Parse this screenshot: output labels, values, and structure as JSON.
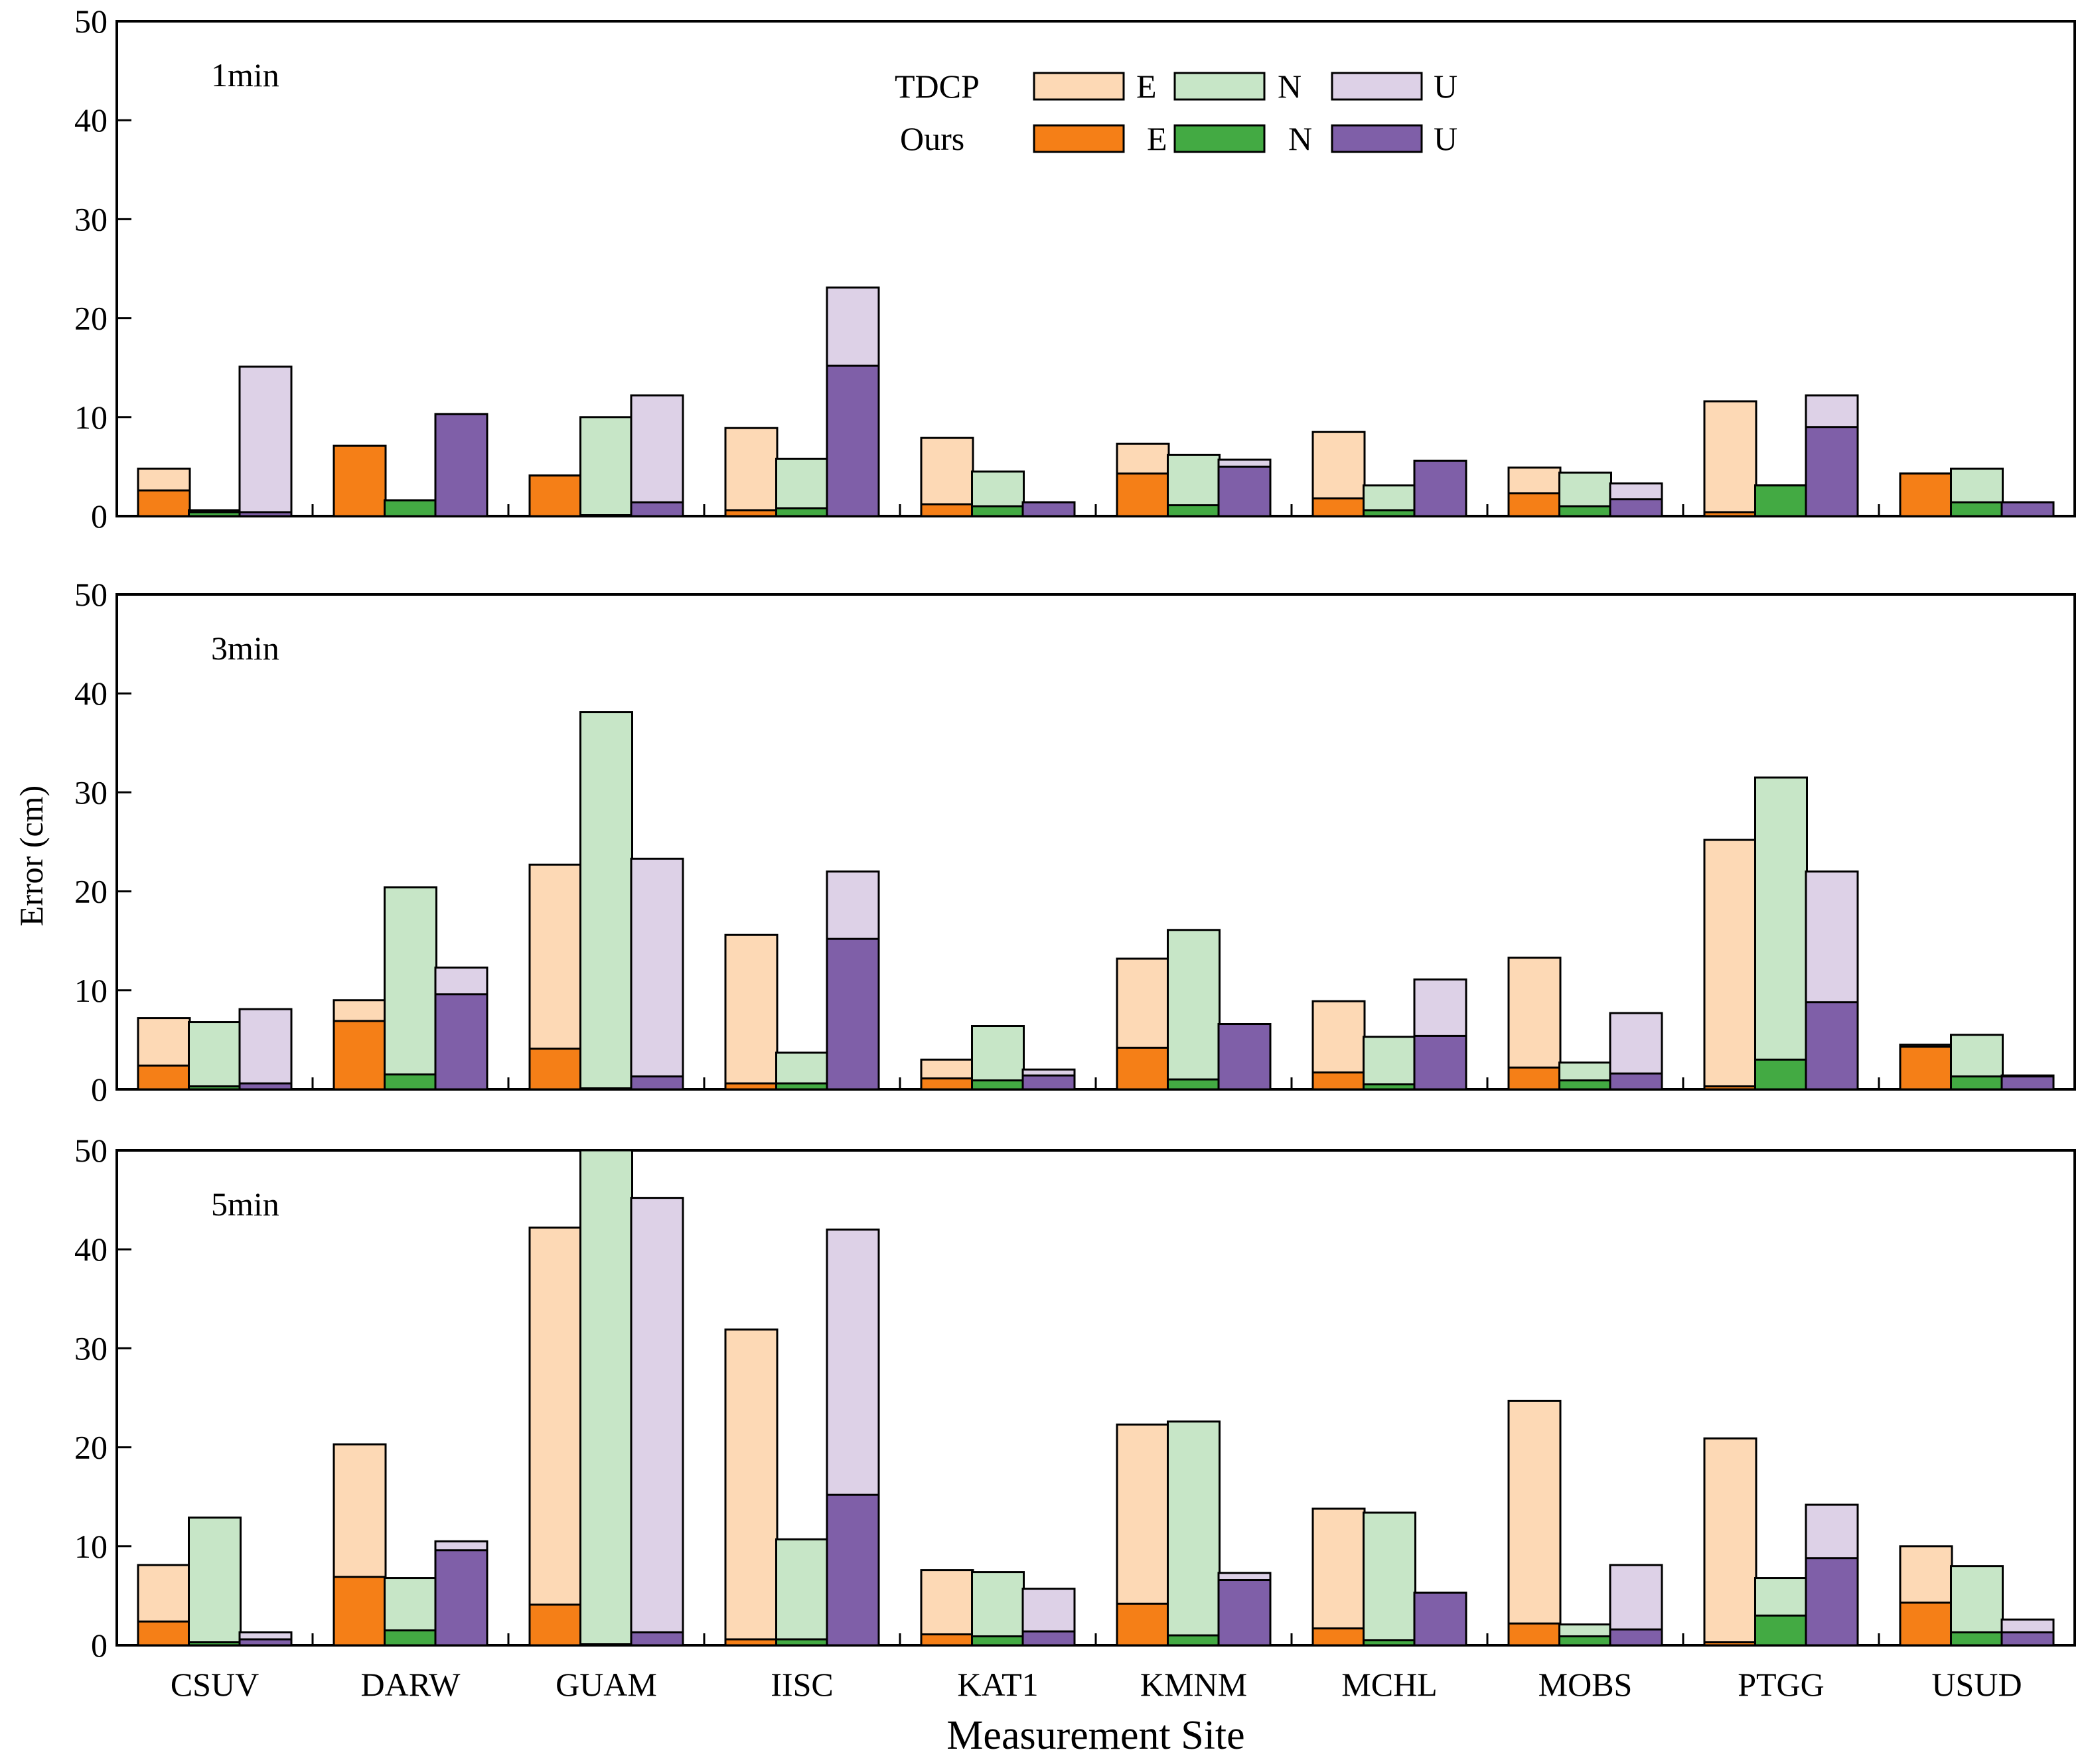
{
  "chart_data": {
    "type": "bar",
    "xlabel": "Measurement Site",
    "ylabel": "Error (cm)",
    "categories": [
      "CSUV",
      "DARW",
      "GUAM",
      "IISC",
      "KAT1",
      "KMNM",
      "MCHL",
      "MOBS",
      "PTGG",
      "USUD"
    ],
    "ylim": [
      0,
      50
    ],
    "yticks": [
      0,
      10,
      20,
      30,
      40,
      50
    ],
    "legend": {
      "position": "top-center",
      "rows": [
        {
          "label": "TDCP",
          "entries": [
            {
              "label": "E",
              "color": "#fdd9b5"
            },
            {
              "label": "N",
              "color": "#c7e6c7"
            },
            {
              "label": "U",
              "color": "#ddd1e7"
            }
          ]
        },
        {
          "label": "Ours",
          "entries": [
            {
              "label": "E",
              "color": "#f57f17"
            },
            {
              "label": "N",
              "color": "#43aa43"
            },
            {
              "label": "U",
              "color": "#7f5fa8"
            }
          ]
        }
      ]
    },
    "colors": {
      "tdcp": {
        "E": "#fdd9b5",
        "N": "#c7e6c7",
        "U": "#ddd1e7"
      },
      "ours": {
        "E": "#f57f17",
        "N": "#43aa43",
        "U": "#7f5fa8"
      }
    },
    "panels": [
      {
        "label": "1min",
        "tdcp": {
          "E": [
            4.8,
            7.1,
            4.1,
            8.9,
            7.9,
            7.3,
            8.5,
            4.9,
            11.6,
            4.3
          ],
          "N": [
            0.6,
            1.6,
            10.0,
            5.8,
            4.5,
            6.2,
            3.1,
            4.4,
            3.1,
            4.8
          ],
          "U": [
            15.1,
            10.3,
            12.2,
            23.1,
            1.4,
            5.7,
            5.6,
            3.3,
            12.2,
            1.4
          ]
        },
        "ours": {
          "E": [
            2.6,
            7.1,
            4.1,
            0.6,
            1.2,
            4.3,
            1.8,
            2.3,
            0.4,
            4.3
          ],
          "N": [
            0.4,
            1.6,
            0.1,
            0.8,
            1.0,
            1.1,
            0.6,
            1.0,
            3.1,
            1.4
          ],
          "U": [
            0.4,
            10.3,
            1.4,
            15.2,
            1.4,
            5.0,
            5.6,
            1.7,
            9.0,
            1.4
          ]
        }
      },
      {
        "label": "3min",
        "tdcp": {
          "E": [
            7.2,
            9.0,
            22.7,
            15.6,
            3.0,
            13.2,
            8.9,
            13.3,
            25.2,
            4.5
          ],
          "N": [
            6.8,
            20.4,
            38.1,
            3.7,
            6.4,
            16.1,
            5.3,
            2.7,
            31.5,
            5.5
          ],
          "U": [
            8.1,
            12.3,
            23.3,
            22.0,
            2.0,
            6.6,
            11.1,
            7.7,
            22.0,
            1.4
          ]
        },
        "ours": {
          "E": [
            2.4,
            6.9,
            4.1,
            0.6,
            1.1,
            4.2,
            1.7,
            2.2,
            0.3,
            4.3
          ],
          "N": [
            0.3,
            1.5,
            0.1,
            0.6,
            0.9,
            1.0,
            0.5,
            0.9,
            3.0,
            1.3
          ],
          "U": [
            0.6,
            9.6,
            1.3,
            15.2,
            1.4,
            6.6,
            5.4,
            1.6,
            8.8,
            1.3
          ]
        }
      },
      {
        "label": "5min",
        "tdcp": {
          "E": [
            8.1,
            20.3,
            42.2,
            31.9,
            7.6,
            22.3,
            13.8,
            24.7,
            20.9,
            10.0
          ],
          "N": [
            12.9,
            6.8,
            50.0,
            10.7,
            7.4,
            22.6,
            13.4,
            2.1,
            6.8,
            8.0
          ],
          "U": [
            1.3,
            10.5,
            45.2,
            42.0,
            5.7,
            7.3,
            5.3,
            8.1,
            14.2,
            2.6
          ]
        },
        "ours": {
          "E": [
            2.4,
            6.9,
            4.1,
            0.6,
            1.1,
            4.2,
            1.7,
            2.2,
            0.3,
            4.3
          ],
          "N": [
            0.3,
            1.5,
            0.1,
            0.6,
            0.9,
            1.0,
            0.5,
            0.9,
            3.0,
            1.3
          ],
          "U": [
            0.6,
            9.6,
            1.3,
            15.2,
            1.4,
            6.6,
            5.3,
            1.6,
            8.8,
            1.3
          ]
        }
      }
    ]
  }
}
